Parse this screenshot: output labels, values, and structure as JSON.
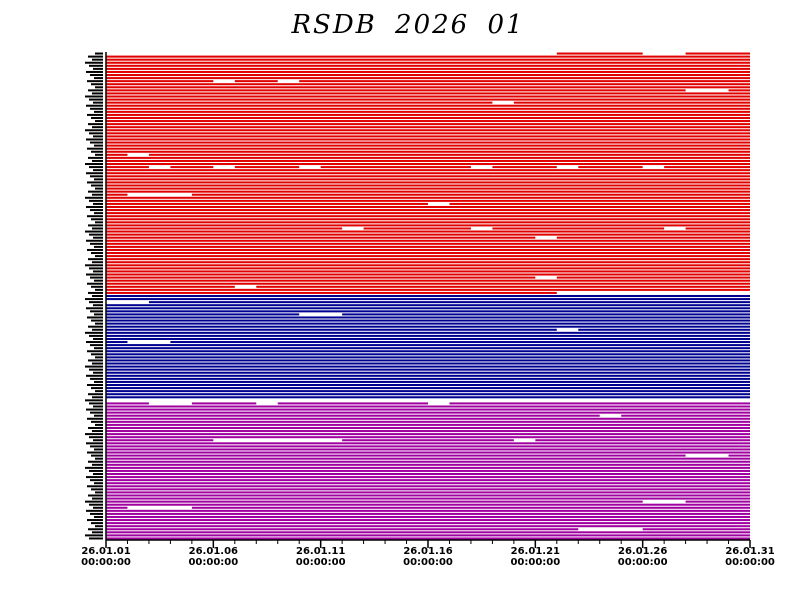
{
  "chart_data": {
    "type": "broken-barh",
    "title": "RSDB 2026 01",
    "xlabel": "",
    "ylabel": "",
    "x_range": [
      "26.01.01 00:00:00",
      "26.01.31 00:00:00"
    ],
    "x_ticks": [
      {
        "date": "26.01.01",
        "time": "00:00:00"
      },
      {
        "date": "26.01.06",
        "time": "00:00:00"
      },
      {
        "date": "26.01.11",
        "time": "00:00:00"
      },
      {
        "date": "26.01.16",
        "time": "00:00:00"
      },
      {
        "date": "26.01.21",
        "time": "00:00:00"
      },
      {
        "date": "26.01.26",
        "time": "00:00:00"
      },
      {
        "date": "26.01.31",
        "time": "00:00:00"
      }
    ],
    "grid": false,
    "legend": "none",
    "groups": [
      {
        "color": "#e00000",
        "rows": 79,
        "first_row_start": "26.01.22"
      },
      {
        "color": "#000090",
        "rows": 35
      },
      {
        "color": "#a000a0",
        "rows": 45
      }
    ],
    "gaps": [
      {
        "group": 0,
        "row": 0,
        "from": "26.01.01",
        "to": "26.01.22"
      },
      {
        "group": 0,
        "row": 0,
        "from": "26.01.26",
        "to": "26.01.28"
      },
      {
        "group": 0,
        "row": 9,
        "from": "26.01.06",
        "to": "26.01.07"
      },
      {
        "group": 0,
        "row": 9,
        "from": "26.01.09",
        "to": "26.01.10"
      },
      {
        "group": 0,
        "row": 12,
        "from": "26.01.28",
        "to": "26.01.30"
      },
      {
        "group": 0,
        "row": 16,
        "from": "26.01.19",
        "to": "26.01.20"
      },
      {
        "group": 0,
        "row": 33,
        "from": "26.01.02",
        "to": "26.01.03"
      },
      {
        "group": 0,
        "row": 37,
        "from": "26.01.03",
        "to": "26.01.04"
      },
      {
        "group": 0,
        "row": 37,
        "from": "26.01.06",
        "to": "26.01.07"
      },
      {
        "group": 0,
        "row": 37,
        "from": "26.01.10",
        "to": "26.01.11"
      },
      {
        "group": 0,
        "row": 37,
        "from": "26.01.18",
        "to": "26.01.19"
      },
      {
        "group": 0,
        "row": 37,
        "from": "26.01.22",
        "to": "26.01.23"
      },
      {
        "group": 0,
        "row": 37,
        "from": "26.01.26",
        "to": "26.01.27"
      },
      {
        "group": 0,
        "row": 46,
        "from": "26.01.02",
        "to": "26.01.05"
      },
      {
        "group": 0,
        "row": 49,
        "from": "26.01.16",
        "to": "26.01.17"
      },
      {
        "group": 0,
        "row": 57,
        "from": "26.01.12",
        "to": "26.01.13"
      },
      {
        "group": 0,
        "row": 57,
        "from": "26.01.18",
        "to": "26.01.19"
      },
      {
        "group": 0,
        "row": 57,
        "from": "26.01.27",
        "to": "26.01.28"
      },
      {
        "group": 0,
        "row": 60,
        "from": "26.01.21",
        "to": "26.01.22"
      },
      {
        "group": 0,
        "row": 73,
        "from": "26.01.21",
        "to": "26.01.22"
      },
      {
        "group": 0,
        "row": 76,
        "from": "26.01.07",
        "to": "26.01.08"
      },
      {
        "group": 0,
        "row": 78,
        "from": "26.01.22",
        "to": "26.01.31"
      },
      {
        "group": 1,
        "row": 2,
        "from": "26.01.01",
        "to": "26.01.03"
      },
      {
        "group": 1,
        "row": 6,
        "from": "26.01.10",
        "to": "26.01.12"
      },
      {
        "group": 1,
        "row": 11,
        "from": "26.01.22",
        "to": "26.01.23"
      },
      {
        "group": 1,
        "row": 15,
        "from": "26.01.02",
        "to": "26.01.04"
      },
      {
        "group": 1,
        "row": 34,
        "from": "26.01.01",
        "to": "26.01.31"
      },
      {
        "group": 2,
        "row": 0,
        "from": "26.01.03",
        "to": "26.01.05"
      },
      {
        "group": 2,
        "row": 0,
        "from": "26.01.08",
        "to": "26.01.09"
      },
      {
        "group": 2,
        "row": 0,
        "from": "26.01.16",
        "to": "26.01.17"
      },
      {
        "group": 2,
        "row": 4,
        "from": "26.01.24",
        "to": "26.01.25"
      },
      {
        "group": 2,
        "row": 12,
        "from": "26.01.06",
        "to": "26.01.12"
      },
      {
        "group": 2,
        "row": 12,
        "from": "26.01.20",
        "to": "26.01.21"
      },
      {
        "group": 2,
        "row": 17,
        "from": "26.01.28",
        "to": "26.01.30"
      },
      {
        "group": 2,
        "row": 32,
        "from": "26.01.26",
        "to": "26.01.28"
      },
      {
        "group": 2,
        "row": 34,
        "from": "26.01.02",
        "to": "26.01.05"
      },
      {
        "group": 2,
        "row": 41,
        "from": "26.01.23",
        "to": "26.01.26"
      }
    ]
  }
}
